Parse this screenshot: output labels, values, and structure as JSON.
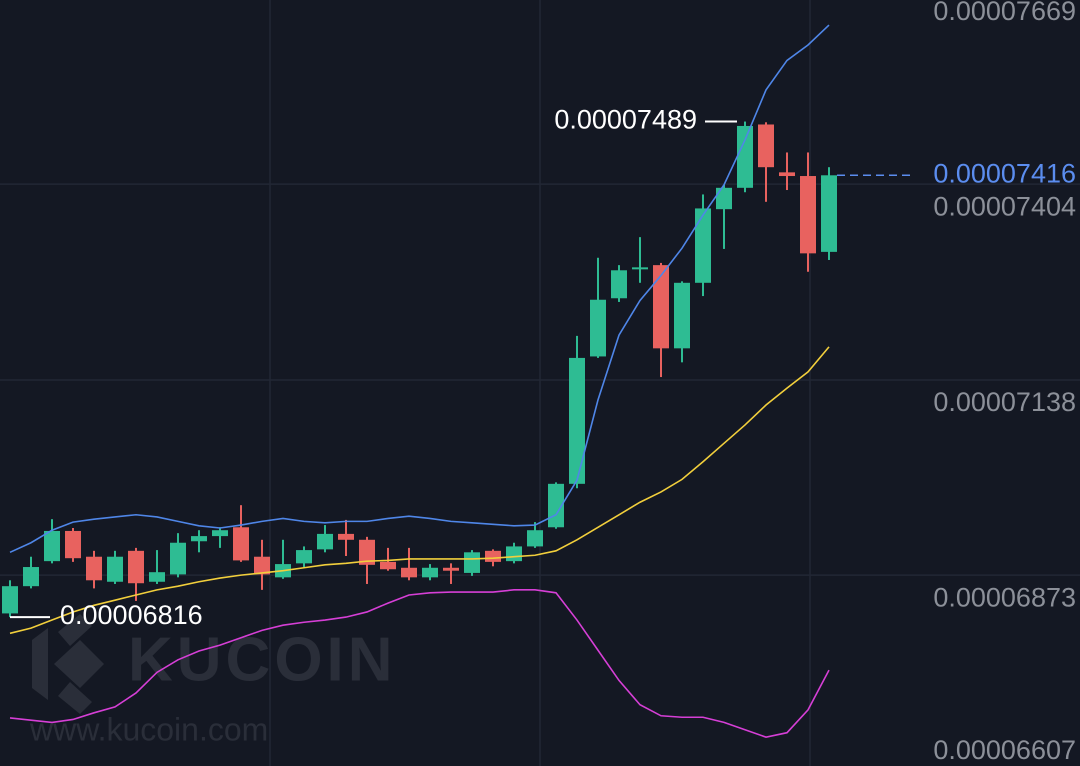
{
  "chart_data": {
    "type": "candlestick",
    "open": [
      6.821e-05,
      6.858e-05,
      6.892e-05,
      6.933e-05,
      6.898e-05,
      6.864e-05,
      6.906e-05,
      6.864e-05,
      6.874e-05,
      6.919e-05,
      6.926e-05,
      6.938e-05,
      6.898e-05,
      6.87e-05,
      6.889e-05,
      6.908e-05,
      6.929e-05,
      6.921e-05,
      6.891e-05,
      6.883e-05,
      6.87e-05,
      6.883e-05,
      6.876e-05,
      6.906e-05,
      6.892e-05,
      6.912e-05,
      6.938e-05,
      6.997e-05,
      7.17e-05,
      7.249e-05,
      7.289e-05,
      7.294e-05,
      7.181e-05,
      7.27e-05,
      7.37e-05,
      7.399e-05,
      7.485e-05,
      7.42e-05,
      7.415e-05,
      7.312e-05
    ],
    "high": [
      6.866e-05,
      6.898e-05,
      6.949e-05,
      6.937e-05,
      6.906e-05,
      6.906e-05,
      6.91e-05,
      6.907e-05,
      6.93e-05,
      6.934e-05,
      6.938e-05,
      6.968e-05,
      6.921e-05,
      6.921e-05,
      6.912e-05,
      6.941e-05,
      6.948e-05,
      6.925e-05,
      6.91e-05,
      6.91e-05,
      6.888e-05,
      6.889e-05,
      6.907e-05,
      6.908e-05,
      6.917e-05,
      6.945e-05,
      6.999e-05,
      7.198e-05,
      7.304e-05,
      7.294e-05,
      7.332e-05,
      7.297e-05,
      7.272e-05,
      7.39e-05,
      7.403e-05,
      7.489e-05,
      7.488e-05,
      7.447e-05,
      7.447e-05,
      7.427e-05
    ],
    "low": [
      6.816e-05,
      6.855e-05,
      6.889e-05,
      6.891e-05,
      6.855e-05,
      6.861e-05,
      6.838e-05,
      6.861e-05,
      6.87e-05,
      6.904e-05,
      6.91e-05,
      6.891e-05,
      6.853e-05,
      6.868e-05,
      6.884e-05,
      6.904e-05,
      6.899e-05,
      6.861e-05,
      6.879e-05,
      6.866e-05,
      6.866e-05,
      6.861e-05,
      6.872e-05,
      6.885e-05,
      6.889e-05,
      6.91e-05,
      6.936e-05,
      6.991e-05,
      7.168e-05,
      7.244e-05,
      7.27e-05,
      7.142e-05,
      7.162e-05,
      7.252e-05,
      7.316e-05,
      7.393e-05,
      7.38e-05,
      7.396e-05,
      7.285e-05,
      7.301e-05
    ],
    "close": [
      6.858e-05,
      6.884e-05,
      6.933e-05,
      6.896e-05,
      6.866e-05,
      6.898e-05,
      6.862e-05,
      6.877e-05,
      6.917e-05,
      6.926e-05,
      6.934e-05,
      6.893e-05,
      6.874e-05,
      6.888e-05,
      6.907e-05,
      6.929e-05,
      6.921e-05,
      6.887e-05,
      6.881e-05,
      6.87e-05,
      6.883e-05,
      6.879e-05,
      6.904e-05,
      6.891e-05,
      6.912e-05,
      6.934e-05,
      6.997e-05,
      7.168e-05,
      7.247e-05,
      7.287e-05,
      7.291e-05,
      7.181e-05,
      7.27e-05,
      7.371e-05,
      7.399e-05,
      7.483e-05,
      7.427e-05,
      7.415e-05,
      7.31e-05,
      7.416e-05
    ],
    "up_color": "#2ebc93",
    "down_color": "#e8625f",
    "lines": [
      {
        "color": "#4f86e8",
        "values": [
          6.904e-05,
          6.917e-05,
          6.934e-05,
          6.945e-05,
          6.949e-05,
          6.952e-05,
          6.955e-05,
          6.952e-05,
          6.946e-05,
          6.94e-05,
          6.937e-05,
          6.941e-05,
          6.946e-05,
          6.95e-05,
          6.946e-05,
          6.944e-05,
          6.946e-05,
          6.946e-05,
          6.95e-05,
          6.953e-05,
          6.95e-05,
          6.946e-05,
          6.944e-05,
          6.942e-05,
          6.94e-05,
          6.941e-05,
          6.955e-05,
          7.002e-05,
          7.111e-05,
          7.199e-05,
          7.246e-05,
          7.28e-05,
          7.317e-05,
          7.362e-05,
          7.403e-05,
          7.464e-05,
          7.532e-05,
          7.572e-05,
          7.593e-05,
          7.62e-05
        ]
      },
      {
        "color": "#f2cf3c",
        "values": [
          6.794e-05,
          6.801e-05,
          6.812e-05,
          6.823e-05,
          6.832e-05,
          6.839e-05,
          6.846e-05,
          6.853e-05,
          6.858e-05,
          6.864e-05,
          6.869e-05,
          6.873e-05,
          6.876e-05,
          6.879e-05,
          6.883e-05,
          6.887e-05,
          6.889e-05,
          6.892e-05,
          6.893e-05,
          6.895e-05,
          6.895e-05,
          6.895e-05,
          6.895e-05,
          6.896e-05,
          6.898e-05,
          6.9e-05,
          6.906e-05,
          6.921e-05,
          6.938e-05,
          6.955e-05,
          6.972e-05,
          6.986e-05,
          7.003e-05,
          7.027e-05,
          7.052e-05,
          7.077e-05,
          7.104e-05,
          7.127e-05,
          7.149e-05,
          7.183e-05
        ]
      },
      {
        "color": "#d63fd6",
        "values": [
          6.679e-05,
          6.676e-05,
          6.673e-05,
          6.677e-05,
          6.686e-05,
          6.694e-05,
          6.713e-05,
          6.741e-05,
          6.758e-05,
          6.77e-05,
          6.778e-05,
          6.788e-05,
          6.798e-05,
          6.805e-05,
          6.809e-05,
          6.812e-05,
          6.816e-05,
          6.823e-05,
          6.835e-05,
          6.846e-05,
          6.849e-05,
          6.85e-05,
          6.85e-05,
          6.85e-05,
          6.853e-05,
          6.853e-05,
          6.849e-05,
          6.812e-05,
          6.771e-05,
          6.73e-05,
          6.697e-05,
          6.682e-05,
          6.68e-05,
          6.68e-05,
          6.673e-05,
          6.663e-05,
          6.653e-05,
          6.659e-05,
          6.69e-05,
          6.744e-05
        ]
      }
    ],
    "last_price_color": "#5b8def",
    "ylim": [
      6.607e-05,
      7.669e-05
    ],
    "yticks": [
      6.607e-05,
      6.873e-05,
      7.138e-05,
      7.404e-05,
      7.669e-05
    ],
    "grid": true
  },
  "watermark": {
    "brand": "KUCOIN",
    "url": "www.kucoin.com"
  }
}
